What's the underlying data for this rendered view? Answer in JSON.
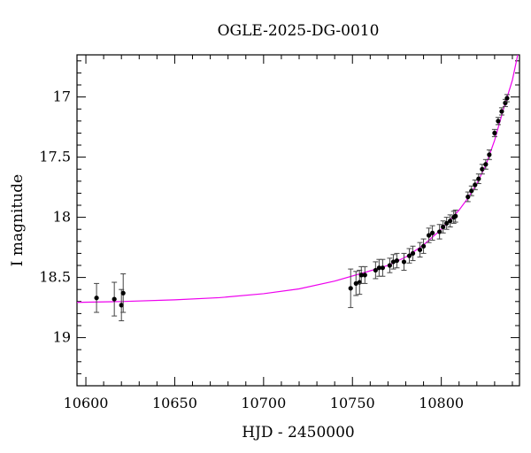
{
  "chart_data": {
    "type": "scatter",
    "title": "OGLE-2025-DG-0010",
    "xlabel": "HJD - 2450000",
    "ylabel": "I magnitude",
    "xlim": [
      10595,
      10844
    ],
    "ylim": [
      19.4,
      16.65
    ],
    "y_inverted": true,
    "grid": false,
    "x_ticks": [
      "10600",
      "10650",
      "10700",
      "10750",
      "10800"
    ],
    "y_ticks": [
      "17",
      "17.5",
      "18",
      "18.5",
      "19"
    ],
    "colors": {
      "points": "#000000",
      "model": "#ee00ee"
    },
    "points": [
      {
        "x": 10606,
        "y": 18.67,
        "err": 0.12
      },
      {
        "x": 10616,
        "y": 18.68,
        "err": 0.14
      },
      {
        "x": 10620,
        "y": 18.73,
        "err": 0.13
      },
      {
        "x": 10621,
        "y": 18.63,
        "err": 0.16
      },
      {
        "x": 10749,
        "y": 18.59,
        "err": 0.16
      },
      {
        "x": 10752,
        "y": 18.55,
        "err": 0.1
      },
      {
        "x": 10754,
        "y": 18.54,
        "err": 0.1
      },
      {
        "x": 10755,
        "y": 18.48,
        "err": 0.07
      },
      {
        "x": 10757,
        "y": 18.48,
        "err": 0.07
      },
      {
        "x": 10763,
        "y": 18.44,
        "err": 0.07
      },
      {
        "x": 10765,
        "y": 18.42,
        "err": 0.07
      },
      {
        "x": 10767,
        "y": 18.42,
        "err": 0.07
      },
      {
        "x": 10771,
        "y": 18.4,
        "err": 0.06
      },
      {
        "x": 10773,
        "y": 18.37,
        "err": 0.06
      },
      {
        "x": 10775,
        "y": 18.36,
        "err": 0.06
      },
      {
        "x": 10779,
        "y": 18.37,
        "err": 0.07
      },
      {
        "x": 10782,
        "y": 18.32,
        "err": 0.06
      },
      {
        "x": 10784,
        "y": 18.3,
        "err": 0.06
      },
      {
        "x": 10788,
        "y": 18.27,
        "err": 0.06
      },
      {
        "x": 10790,
        "y": 18.24,
        "err": 0.06
      },
      {
        "x": 10793,
        "y": 18.15,
        "err": 0.06
      },
      {
        "x": 10795,
        "y": 18.13,
        "err": 0.06
      },
      {
        "x": 10799,
        "y": 18.12,
        "err": 0.06
      },
      {
        "x": 10801,
        "y": 18.08,
        "err": 0.05
      },
      {
        "x": 10803,
        "y": 18.05,
        "err": 0.05
      },
      {
        "x": 10805,
        "y": 18.03,
        "err": 0.05
      },
      {
        "x": 10807,
        "y": 18.0,
        "err": 0.05
      },
      {
        "x": 10808,
        "y": 17.99,
        "err": 0.05
      },
      {
        "x": 10815,
        "y": 17.83,
        "err": 0.04
      },
      {
        "x": 10817,
        "y": 17.78,
        "err": 0.04
      },
      {
        "x": 10819,
        "y": 17.73,
        "err": 0.04
      },
      {
        "x": 10821,
        "y": 17.68,
        "err": 0.04
      },
      {
        "x": 10823,
        "y": 17.6,
        "err": 0.04
      },
      {
        "x": 10825,
        "y": 17.56,
        "err": 0.04
      },
      {
        "x": 10827,
        "y": 17.48,
        "err": 0.04
      },
      {
        "x": 10830,
        "y": 17.3,
        "err": 0.03
      },
      {
        "x": 10832,
        "y": 17.2,
        "err": 0.03
      },
      {
        "x": 10834,
        "y": 17.12,
        "err": 0.03
      },
      {
        "x": 10836,
        "y": 17.05,
        "err": 0.03
      },
      {
        "x": 10837,
        "y": 17.01,
        "err": 0.03
      }
    ],
    "model": [
      {
        "x": 10595,
        "y": 18.707
      },
      {
        "x": 10620,
        "y": 18.7
      },
      {
        "x": 10650,
        "y": 18.686
      },
      {
        "x": 10675,
        "y": 18.668
      },
      {
        "x": 10700,
        "y": 18.635
      },
      {
        "x": 10720,
        "y": 18.595
      },
      {
        "x": 10740,
        "y": 18.53
      },
      {
        "x": 10760,
        "y": 18.445
      },
      {
        "x": 10770,
        "y": 18.4
      },
      {
        "x": 10780,
        "y": 18.33
      },
      {
        "x": 10790,
        "y": 18.23
      },
      {
        "x": 10800,
        "y": 18.1
      },
      {
        "x": 10810,
        "y": 17.94
      },
      {
        "x": 10815,
        "y": 17.84
      },
      {
        "x": 10820,
        "y": 17.72
      },
      {
        "x": 10825,
        "y": 17.57
      },
      {
        "x": 10830,
        "y": 17.36
      },
      {
        "x": 10835,
        "y": 17.1
      },
      {
        "x": 10840,
        "y": 16.86
      },
      {
        "x": 10843,
        "y": 16.65
      }
    ]
  }
}
